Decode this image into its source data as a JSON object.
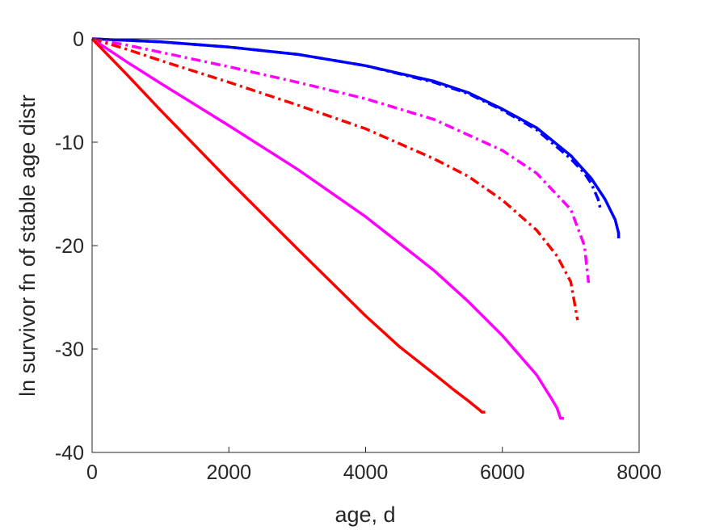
{
  "chart_data": {
    "type": "line",
    "title": "",
    "xlabel": "age, d",
    "ylabel": "ln survivor fn of stable age distr",
    "xlim": [
      0,
      8000
    ],
    "ylim": [
      -40,
      0
    ],
    "xticks": [
      "0",
      "2000",
      "4000",
      "6000",
      "8000"
    ],
    "yticks": [
      "0",
      "-10",
      "-20",
      "-30",
      "-40"
    ],
    "grid": false,
    "legend": "none",
    "series": [
      {
        "color": "#0000ff",
        "style": "solid",
        "x": [
          0,
          1000,
          2000,
          3000,
          4000,
          5000,
          5500,
          6000,
          6500,
          7000,
          7300,
          7500,
          7650,
          7700,
          7700
        ],
        "y": [
          0,
          -0.3,
          -0.8,
          -1.5,
          -2.6,
          -4.1,
          -5.2,
          -6.8,
          -8.6,
          -11.3,
          -13.5,
          -15.5,
          -17.5,
          -18.8,
          -19.3
        ]
      },
      {
        "color": "#0000ff",
        "style": "dashdot",
        "x": [
          0,
          1000,
          2000,
          3000,
          4000,
          5000,
          5500,
          6000,
          6500,
          7000,
          7200,
          7300,
          7400,
          7440
        ],
        "y": [
          0,
          -0.3,
          -0.8,
          -1.5,
          -2.6,
          -4.2,
          -5.3,
          -6.9,
          -8.8,
          -11.6,
          -13.0,
          -14.0,
          -15.5,
          -16.6
        ]
      },
      {
        "color": "#ff00ff",
        "style": "dashdot",
        "x": [
          0,
          500,
          1000,
          2000,
          3000,
          4000,
          5000,
          6000,
          6500,
          7000,
          7200,
          7260
        ],
        "y": [
          0,
          -0.6,
          -1.3,
          -2.7,
          -4.2,
          -5.8,
          -7.8,
          -10.8,
          -13.0,
          -16.5,
          -20.0,
          -23.6
        ]
      },
      {
        "color": "#ff0000",
        "style": "dashdot",
        "x": [
          0,
          500,
          1000,
          2000,
          3000,
          4000,
          5000,
          5500,
          6000,
          6500,
          6800,
          7000,
          7100
        ],
        "y": [
          0,
          -1.0,
          -2.1,
          -4.2,
          -6.4,
          -8.7,
          -11.6,
          -13.3,
          -15.6,
          -18.5,
          -21.0,
          -23.5,
          -27.2
        ]
      },
      {
        "color": "#ff00ff",
        "style": "solid",
        "x": [
          0,
          500,
          1000,
          2000,
          3000,
          4000,
          5000,
          5500,
          6000,
          6500,
          6700,
          6800,
          6850,
          6900
        ],
        "y": [
          0,
          -2.2,
          -4.3,
          -8.4,
          -12.6,
          -17.2,
          -22.4,
          -25.4,
          -28.7,
          -32.5,
          -34.6,
          -35.7,
          -36.7,
          -36.7
        ]
      },
      {
        "color": "#ff0000",
        "style": "solid",
        "x": [
          0,
          500,
          1000,
          2000,
          3000,
          4000,
          4500,
          5000,
          5300,
          5500,
          5650,
          5700,
          5750
        ],
        "y": [
          0,
          -3.4,
          -6.9,
          -13.7,
          -20.3,
          -26.8,
          -29.8,
          -32.4,
          -34.0,
          -35.0,
          -35.8,
          -36.1,
          -36.1
        ]
      }
    ]
  }
}
